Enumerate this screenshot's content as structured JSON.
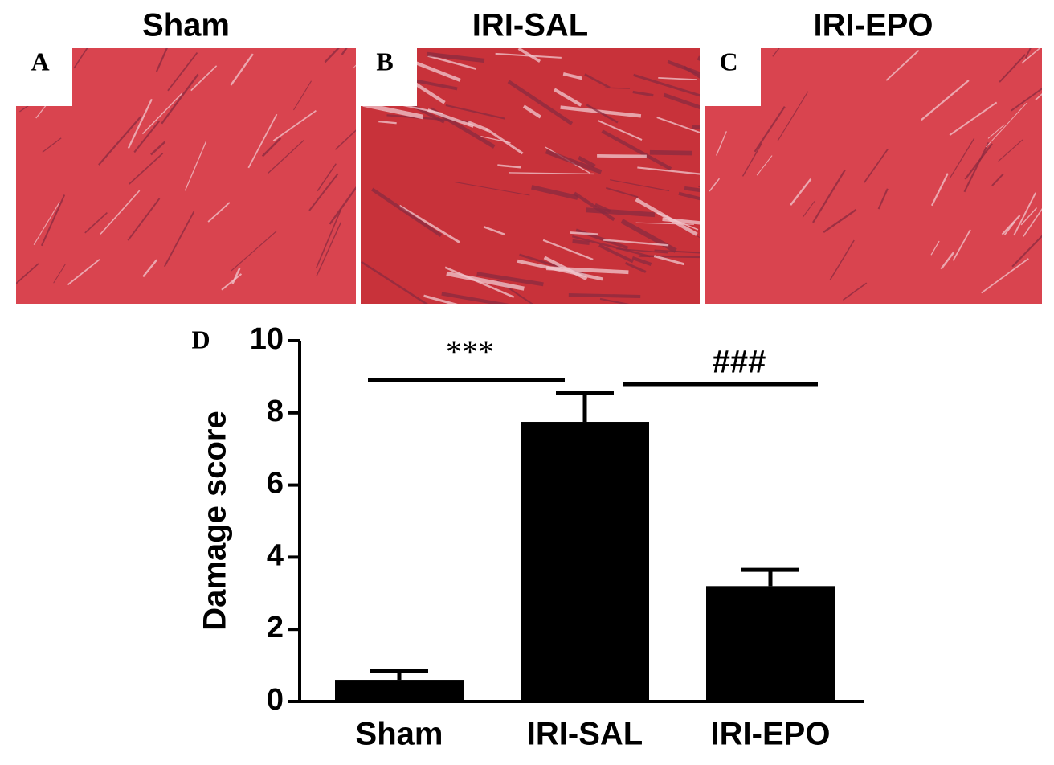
{
  "panels": [
    {
      "title": "Sham",
      "label": "A"
    },
    {
      "title": "IRI-SAL",
      "label": "B"
    },
    {
      "title": "IRI-EPO",
      "label": "C"
    }
  ],
  "chart_data": {
    "type": "bar",
    "label": "D",
    "ylabel": "Damage score",
    "categories": [
      "Sham",
      "IRI-SAL",
      "IRI-EPO"
    ],
    "values": [
      0.6,
      7.75,
      3.2
    ],
    "errors": [
      0.25,
      0.8,
      0.45
    ],
    "color": "#000000",
    "ylim": [
      0,
      10
    ],
    "yticks": [
      0,
      2,
      4,
      6,
      8,
      10
    ],
    "annotations": [
      "***",
      "###"
    ]
  }
}
